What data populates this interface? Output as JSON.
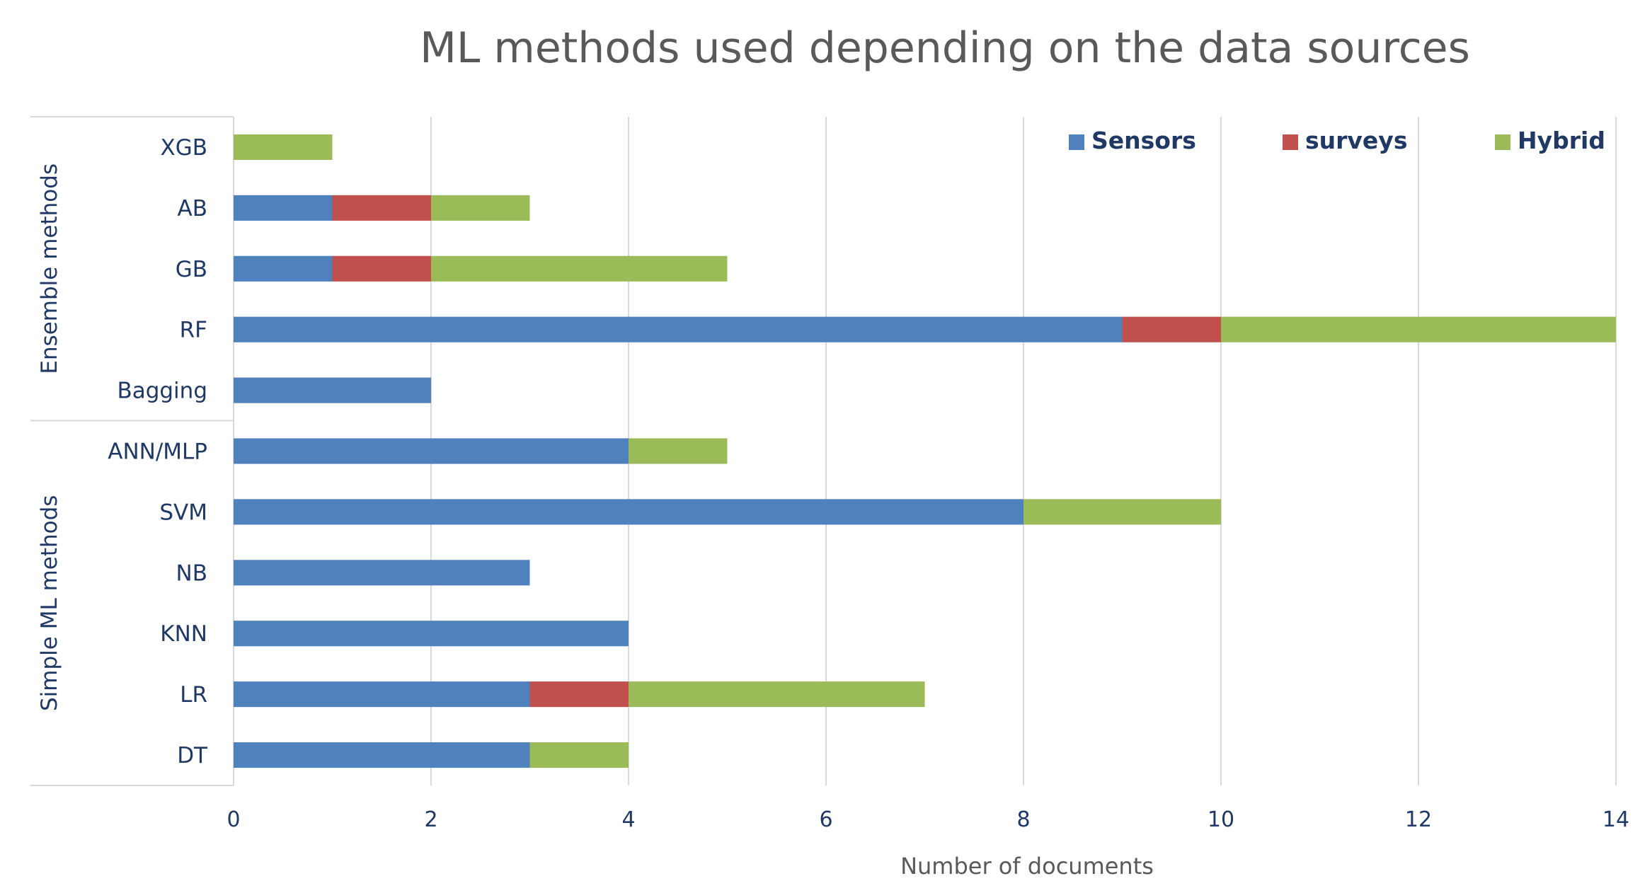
{
  "chart_data": {
    "type": "bar",
    "orientation": "horizontal",
    "stacked": true,
    "title": "ML methods used depending on the data sources",
    "xlabel": "Number of documents",
    "ylabel": "",
    "xlim": [
      0,
      14
    ],
    "x_ticks": [
      "0",
      "2",
      "4",
      "6",
      "8",
      "10",
      "12",
      "14"
    ],
    "grid": "vertical",
    "legend_position": "top-right",
    "categories": [
      "XGB",
      "AB",
      "GB",
      "RF",
      "Bagging",
      "ANN/MLP",
      "SVM",
      "NB",
      "KNN",
      "LR",
      "DT"
    ],
    "groups": [
      {
        "label": "Ensemble methods",
        "categories": [
          "XGB",
          "AB",
          "GB",
          "RF",
          "Bagging"
        ]
      },
      {
        "label": "Simple ML methods",
        "categories": [
          "ANN/MLP",
          "SVM",
          "NB",
          "KNN",
          "LR",
          "DT"
        ]
      }
    ],
    "series": [
      {
        "name": "Sensors",
        "color": "#4f81bd",
        "values": [
          0,
          1,
          1,
          9,
          2,
          4,
          8,
          3,
          4,
          3,
          3
        ]
      },
      {
        "name": "surveys",
        "color": "#c0504d",
        "values": [
          0,
          1,
          1,
          1,
          0,
          0,
          0,
          0,
          0,
          1,
          0
        ]
      },
      {
        "name": "Hybrid",
        "color": "#9bbb59",
        "values": [
          1,
          1,
          3,
          4,
          0,
          1,
          2,
          0,
          0,
          3,
          1
        ]
      }
    ]
  }
}
